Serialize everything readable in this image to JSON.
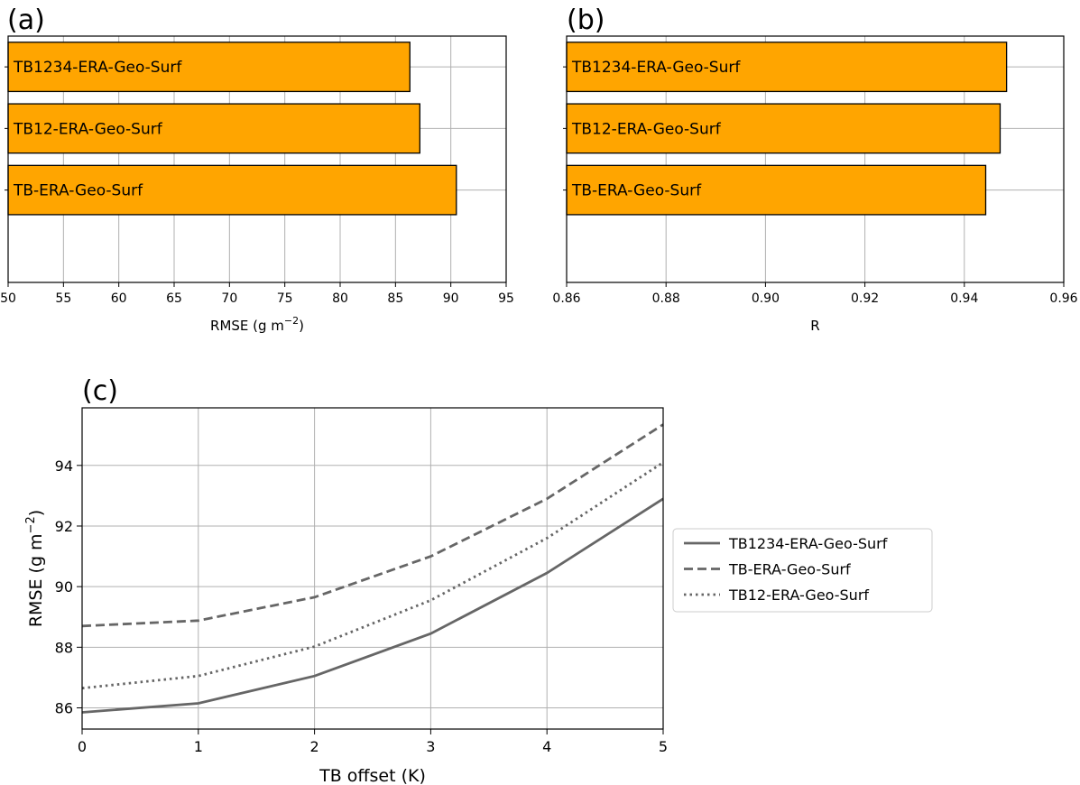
{
  "chart_data": [
    {
      "panel": "(a)",
      "type": "bar",
      "orientation": "horizontal",
      "categories": [
        "TB1234-ERA-Geo-Surf",
        "TB12-ERA-Geo-Surf",
        "TB-ERA-Geo-Surf"
      ],
      "values": [
        86.3,
        87.2,
        90.5
      ],
      "xlabel": "RMSE (g m",
      "xlabel_sup": "−2",
      "xlabel_end": ")",
      "xlim": [
        50,
        95
      ],
      "xticks": [
        50,
        55,
        60,
        65,
        70,
        75,
        80,
        85,
        90,
        95
      ],
      "tick_labels": [
        "50",
        "55",
        "60",
        "65",
        "70",
        "75",
        "80",
        "85",
        "90",
        "95"
      ],
      "grid": true,
      "bar_color": "#ffa500"
    },
    {
      "panel": "(b)",
      "type": "bar",
      "orientation": "horizontal",
      "categories": [
        "TB1234-ERA-Geo-Surf",
        "TB12-ERA-Geo-Surf",
        "TB-ERA-Geo-Surf"
      ],
      "values": [
        0.9485,
        0.9472,
        0.9443
      ],
      "xlabel": "R",
      "xlim": [
        0.86,
        0.96
      ],
      "xticks": [
        0.86,
        0.88,
        0.9,
        0.92,
        0.94,
        0.96
      ],
      "tick_labels": [
        "0.86",
        "0.88",
        "0.90",
        "0.92",
        "0.94",
        "0.96"
      ],
      "grid": true,
      "bar_color": "#ffa500"
    },
    {
      "panel": "(c)",
      "type": "line",
      "x": [
        0,
        1,
        2,
        3,
        4,
        5
      ],
      "series": [
        {
          "name": "TB1234-ERA-Geo-Surf",
          "style": "solid",
          "values": [
            85.85,
            86.15,
            87.05,
            88.45,
            90.45,
            92.9
          ]
        },
        {
          "name": "TB-ERA-Geo-Surf",
          "style": "dashed",
          "values": [
            88.7,
            88.88,
            89.65,
            91.0,
            92.9,
            95.35
          ]
        },
        {
          "name": "TB12-ERA-Geo-Surf",
          "style": "dotted",
          "values": [
            86.65,
            87.05,
            88.02,
            89.55,
            91.6,
            94.1
          ]
        }
      ],
      "xlabel": "TB offset (K)",
      "ylabel": "RMSE (g m",
      "ylabel_sup": "−2",
      "ylabel_end": ")",
      "xlim": [
        0,
        5
      ],
      "ylim": [
        85.3,
        95.9
      ],
      "xticks": [
        0,
        1,
        2,
        3,
        4,
        5
      ],
      "xtick_labels": [
        "0",
        "1",
        "2",
        "3",
        "4",
        "5"
      ],
      "yticks": [
        86,
        88,
        90,
        92,
        94
      ],
      "ytick_labels": [
        "86",
        "88",
        "90",
        "92",
        "94"
      ],
      "grid": true,
      "legend_position": "right",
      "line_color": "#666666"
    }
  ]
}
